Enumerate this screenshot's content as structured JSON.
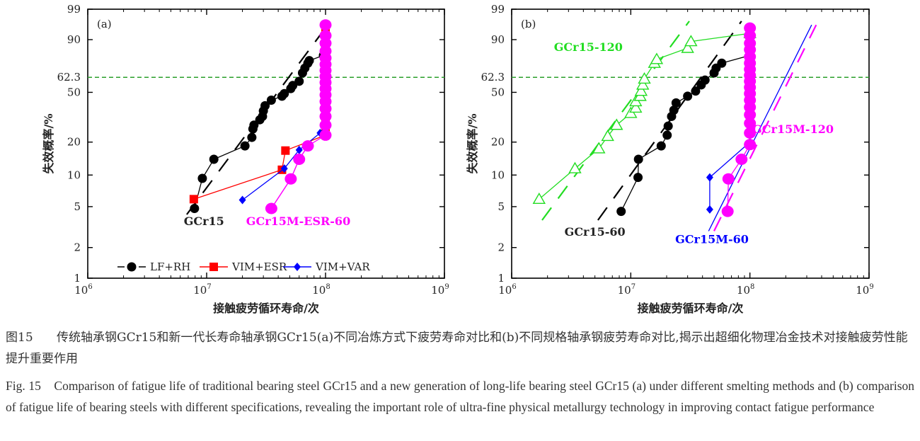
{
  "caption": {
    "zh_label": "图15",
    "zh_text": "传统轴承钢GCr15和新一代长寿命轴承钢GCr15(a)不同冶炼方式下疲劳寿命对比和(b)不同规格轴承钢疲劳寿命对比,揭示出超细化物理冶金技术对接触疲劳性能提升重要作用",
    "en_label": "Fig. 15",
    "en_text": "Comparison of fatigue life of traditional bearing steel GCr15 and a new generation of long-life bearing steel GCr15 (a) under different smelting methods and (b) comparison of fatigue life of bearing steels with different specifications, revealing the important role of ultra-fine physical metallurgy technology in improving contact fatigue performance"
  },
  "chart_data": [
    {
      "type": "scatter",
      "panel_label": "(a)",
      "xlabel": "接触疲劳循环寿命/次",
      "ylabel": "失效概率/%",
      "x_scale": "log",
      "y_scale": "weibull",
      "xlim": [
        1000000,
        1000000000
      ],
      "ylim": [
        1,
        99
      ],
      "x_ticks": [
        {
          "v": 1000000,
          "b": "10",
          "e": "6"
        },
        {
          "v": 10000000,
          "b": "10",
          "e": "7"
        },
        {
          "v": 100000000,
          "b": "10",
          "e": "8"
        },
        {
          "v": 1000000000,
          "b": "10",
          "e": "9"
        }
      ],
      "y_ticks": [
        1,
        2,
        5,
        10,
        20,
        50,
        90,
        99
      ],
      "reference_line": {
        "value": 62.3,
        "label": "62.3",
        "color": "#2ca02c"
      },
      "series": [
        {
          "name": "LF+RH",
          "color": "#000000",
          "marker": "circle",
          "fill": true,
          "points": [
            [
              7900000.0,
              4.8
            ],
            [
              9200000.0,
              9.3
            ],
            [
              11500000.0,
              14
            ],
            [
              21000000.0,
              18.5
            ],
            [
              24000000.0,
              22
            ],
            [
              24500000.0,
              26
            ],
            [
              25000000.0,
              28
            ],
            [
              28000000.0,
              31
            ],
            [
              29500000.0,
              33
            ],
            [
              30000000.0,
              36.5
            ],
            [
              31000000.0,
              40
            ],
            [
              35000000.0,
              44
            ],
            [
              43000000.0,
              47
            ],
            [
              45000000.0,
              49
            ],
            [
              51000000.0,
              53
            ],
            [
              53000000.0,
              55.5
            ],
            [
              60000000.0,
              59
            ],
            [
              64000000.0,
              66
            ],
            [
              67000000.0,
              70
            ],
            [
              71000000.0,
              74
            ],
            [
              73000000.0,
              76
            ],
            [
              96000000.0,
              80
            ],
            [
              99000000.0,
              84
            ]
          ]
        },
        {
          "name": "VIM+ESR",
          "color": "#ff0000",
          "marker": "square",
          "fill": true,
          "points": [
            [
              7800000.0,
              5.9
            ],
            [
              43000000.0,
              11.2
            ],
            [
              46000000.0,
              16.8
            ],
            [
              100000000.0,
              23
            ],
            [
              100000000.0,
              26
            ],
            [
              100000000.0,
              30
            ],
            [
              100000000.0,
              34
            ],
            [
              100000000.0,
              38
            ],
            [
              100000000.0,
              42
            ],
            [
              100000000.0,
              46
            ],
            [
              100000000.0,
              50
            ],
            [
              100000000.0,
              55
            ],
            [
              100000000.0,
              60
            ],
            [
              100000000.0,
              65
            ],
            [
              100000000.0,
              70
            ],
            [
              100000000.0,
              75
            ],
            [
              100000000.0,
              80
            ],
            [
              100000000.0,
              85
            ],
            [
              100000000.0,
              89
            ],
            [
              100000000.0,
              93
            ]
          ]
        },
        {
          "name": "VIM+VAR",
          "color": "#0000ff",
          "marker": "diamond",
          "fill": true,
          "points": [
            [
              20000000.0,
              5.8
            ],
            [
              45000000.0,
              11.5
            ],
            [
              60000000.0,
              17
            ],
            [
              90000000.0,
              24
            ],
            [
              100000000.0,
              27
            ]
          ]
        },
        {
          "name": "GCr15M-ESR-60",
          "color": "#ff00ff",
          "marker": "big-circle",
          "fill": true,
          "points": [
            [
              35000000.0,
              4.8
            ],
            [
              51000000.0,
              9.2
            ],
            [
              60000000.0,
              14
            ],
            [
              71000000.0,
              18.5
            ],
            [
              100000000.0,
              23
            ],
            [
              100000000.0,
              28
            ],
            [
              100000000.0,
              33
            ],
            [
              100000000.0,
              38
            ],
            [
              100000000.0,
              43
            ],
            [
              100000000.0,
              48
            ],
            [
              100000000.0,
              53
            ],
            [
              100000000.0,
              58
            ],
            [
              100000000.0,
              63
            ],
            [
              100000000.0,
              68
            ],
            [
              100000000.0,
              73
            ],
            [
              100000000.0,
              78
            ],
            [
              100000000.0,
              83
            ],
            [
              100000000.0,
              88
            ],
            [
              100000000.0,
              92
            ],
            [
              100000000.0,
              96
            ]
          ]
        }
      ],
      "fit_lines": [
        {
          "color": "#000000",
          "dash": "long",
          "points": [
            [
              6800000.0,
              4.2
            ],
            [
              110000000.0,
              97
            ]
          ]
        },
        {
          "color": "#ff00ff",
          "dash": "none",
          "points": [
            [
              35000000.0,
              4.8
            ],
            [
              51000000.0,
              9.2
            ],
            [
              60000000.0,
              14
            ],
            [
              71000000.0,
              18.5
            ]
          ]
        }
      ],
      "annotations": [
        {
          "text": "GCr15",
          "color": "#222222",
          "at": [
            9500000.0,
            3.3
          ]
        },
        {
          "text": "GCr15M-ESR-60",
          "color": "#ff00ff",
          "at": [
            59000000.0,
            3.3
          ]
        }
      ],
      "legend_items": [
        "LF+RH",
        "VIM+ESR",
        "VIM+VAR"
      ]
    },
    {
      "type": "scatter",
      "panel_label": "(b)",
      "xlabel": "接触疲劳循环寿命/次",
      "ylabel": "失效概率/%",
      "x_scale": "log",
      "y_scale": "weibull",
      "xlim": [
        1000000,
        1000000000
      ],
      "ylim": [
        1,
        99
      ],
      "x_ticks": [
        {
          "v": 1000000,
          "b": "10",
          "e": "6"
        },
        {
          "v": 10000000,
          "b": "10",
          "e": "7"
        },
        {
          "v": 100000000,
          "b": "10",
          "e": "8"
        },
        {
          "v": 1000000000,
          "b": "10",
          "e": "9"
        }
      ],
      "y_ticks": [
        1,
        2,
        5,
        10,
        20,
        50,
        90,
        99
      ],
      "reference_line": {
        "value": 62.3,
        "label": "62.3",
        "color": "#2ca02c"
      },
      "series": [
        {
          "name": "GCr15-120",
          "color": "#22dd22",
          "marker": "triangle",
          "fill": false,
          "points": [
            [
              1700000.0,
              5.9
            ],
            [
              3400000.0,
              11.5
            ],
            [
              5400000.0,
              17.5
            ],
            [
              6400000.0,
              22.5
            ],
            [
              7600000.0,
              28
            ],
            [
              10000000.0,
              35
            ],
            [
              11000000.0,
              38.5
            ],
            [
              11000000.0,
              43
            ],
            [
              12000000.0,
              47
            ],
            [
              12200000.0,
              51
            ],
            [
              12600000.0,
              56
            ],
            [
              13000000.0,
              61
            ],
            [
              15800000.0,
              74
            ],
            [
              16500000.0,
              77
            ],
            [
              30000000.0,
              85
            ],
            [
              32000000.0,
              89
            ],
            [
              100000000.0,
              93
            ]
          ]
        },
        {
          "name": "GCr15-60",
          "color": "#000000",
          "marker": "circle",
          "fill": true,
          "points": [
            [
              8300000.0,
              4.5
            ],
            [
              11500000.0,
              9.5
            ],
            [
              11600000.0,
              14
            ],
            [
              18000000.0,
              18.5
            ],
            [
              20200000.0,
              23
            ],
            [
              20600000.0,
              27.5
            ],
            [
              22000000.0,
              33
            ],
            [
              23000000.0,
              37
            ],
            [
              24000000.0,
              42
            ],
            [
              30000000.0,
              47
            ],
            [
              35000000.0,
              51
            ],
            [
              39000000.0,
              56
            ],
            [
              42000000.0,
              60
            ],
            [
              50000000.0,
              66
            ],
            [
              52000000.0,
              70
            ],
            [
              58000000.0,
              74
            ],
            [
              100000000.0,
              80
            ]
          ]
        },
        {
          "name": "GCr15M-60",
          "color": "#0000ff",
          "marker": "diamond",
          "fill": true,
          "points": [
            [
              46000000.0,
              4.7
            ],
            [
              46000000.0,
              9.5
            ],
            [
              100000000.0,
              20
            ]
          ]
        },
        {
          "name": "GCr15M-120",
          "color": "#ff00ff",
          "marker": "big-circle",
          "fill": true,
          "points": [
            [
              65000000.0,
              4.5
            ],
            [
              66000000.0,
              9.2
            ],
            [
              85000000.0,
              14
            ],
            [
              100000000.0,
              19
            ],
            [
              100000000.0,
              24
            ],
            [
              100000000.0,
              29
            ],
            [
              100000000.0,
              34
            ],
            [
              100000000.0,
              39
            ],
            [
              100000000.0,
              44
            ],
            [
              100000000.0,
              49
            ],
            [
              100000000.0,
              54
            ],
            [
              100000000.0,
              59
            ],
            [
              100000000.0,
              64
            ],
            [
              100000000.0,
              69
            ],
            [
              100000000.0,
              74
            ],
            [
              100000000.0,
              79
            ],
            [
              100000000.0,
              84
            ],
            [
              100000000.0,
              88
            ],
            [
              100000000.0,
              92
            ],
            [
              100000000.0,
              95
            ]
          ]
        }
      ],
      "fit_lines": [
        {
          "color": "#22dd22",
          "dash": "long",
          "points": [
            [
              1800000.0,
              3.7
            ],
            [
              31000000.0,
              97
            ]
          ]
        },
        {
          "color": "#000000",
          "dash": "long",
          "points": [
            [
              5300000.0,
              3.7
            ],
            [
              85000000.0,
              97
            ]
          ]
        },
        {
          "color": "#0000ff",
          "dash": "none",
          "points": [
            [
              45000000.0,
              2.9
            ],
            [
              330000000.0,
              96
            ]
          ]
        },
        {
          "color": "#ff00ff",
          "dash": "long",
          "points": [
            [
              50000000.0,
              2.9
            ],
            [
              360000000.0,
              96
            ]
          ]
        }
      ],
      "annotations": [
        {
          "text": "GCr15-120",
          "color": "#22dd22",
          "at": [
            4400000.0,
            83
          ]
        },
        {
          "text": "GCr15-60",
          "color": "#222222",
          "at": [
            5000000.0,
            2.6
          ]
        },
        {
          "text": "GCr15M-60",
          "color": "#0000ff",
          "at": [
            48000000.0,
            2.2
          ]
        },
        {
          "text": "GCr15M-120",
          "color": "#ff00ff",
          "at": [
            230000000.0,
            24
          ]
        }
      ],
      "legend_items": []
    }
  ]
}
